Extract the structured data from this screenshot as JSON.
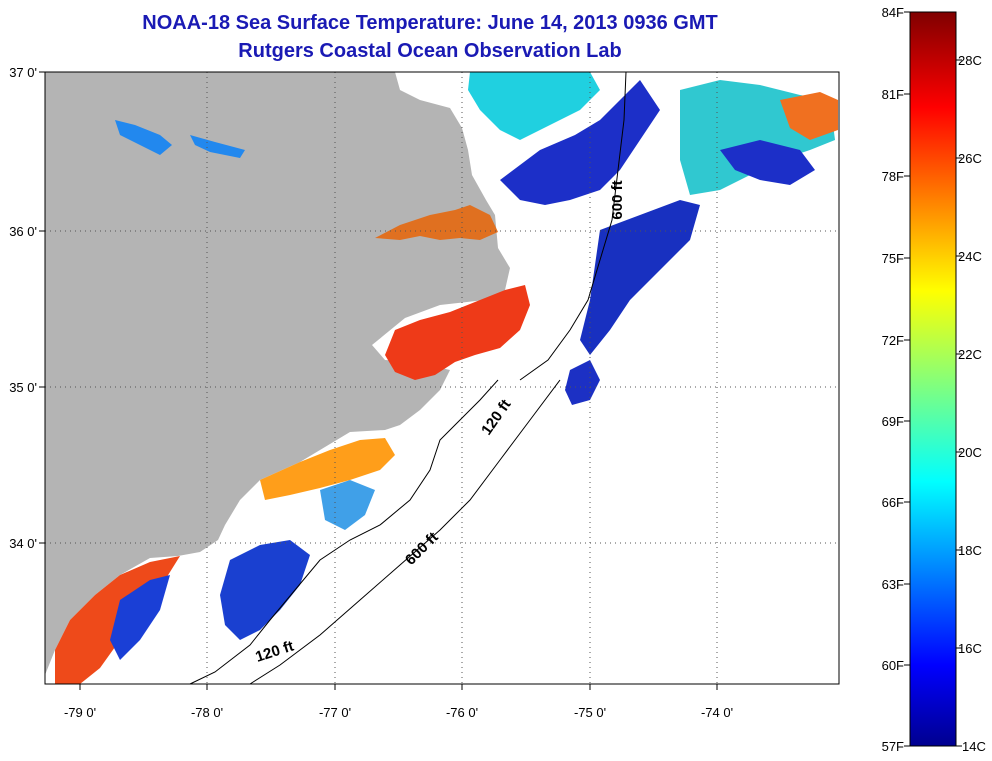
{
  "title": {
    "line1": "NOAA-18 Sea Surface Temperature:  June 14, 2013 0936 GMT",
    "line2": "Rutgers Coastal Ocean Observation Lab"
  },
  "map": {
    "lon_labels": [
      "-79 0'",
      "-78 0'",
      "-77 0'",
      "-76 0'",
      "-75 0'",
      "-74 0'"
    ],
    "lat_labels": [
      "37 0'",
      "36 0'",
      "35 0'",
      "34 0'"
    ],
    "isobaths": [
      "600 ft",
      "120 ft",
      "600 ft",
      "120 ft"
    ],
    "land_color": "#b4b4b4",
    "no_data_color": "#ffffff",
    "grid": "dotted"
  },
  "colorbar": {
    "f_labels": [
      "84F",
      "81F",
      "78F",
      "75F",
      "72F",
      "69F",
      "66F",
      "63F",
      "60F",
      "57F"
    ],
    "c_labels": [
      "28C",
      "26C",
      "24C",
      "22C",
      "20C",
      "18C",
      "16C",
      "14C"
    ],
    "colormap": "jet",
    "range_c": [
      14,
      29
    ]
  }
}
